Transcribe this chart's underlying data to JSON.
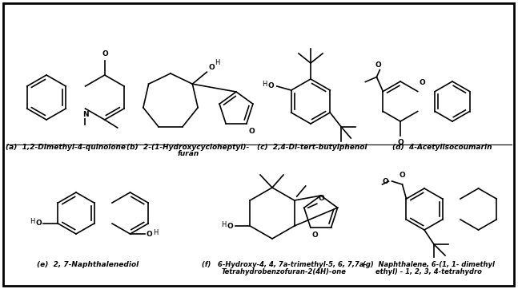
{
  "background_color": "#ffffff",
  "labels": {
    "a": "(a)  1,2-Dimethyl-4-quinolone",
    "b_line1": "(b)  2-(1-Hydroxycycloheptyl)-",
    "b_line2": "furan",
    "c": "(c)  2,4-Di-tert-butylphenol",
    "d": "(d)  4-Acetylisocoumarin",
    "e": "(e)  2, 7-Naphthalenediol",
    "f_line1": "(f)   6-Hydroxy-4, 4, 7a-trimethyl-5, 6, 7,7a-",
    "f_line2": "Tetrahydrobenzofuran-2(4H)-one",
    "g_line1": "(g)  Naphthalene, 6-(1, 1- dimethyl",
    "g_line2": "ethyl) - 1, 2, 3, 4-tetrahydro"
  },
  "lw": 1.2,
  "fs": 6.5
}
